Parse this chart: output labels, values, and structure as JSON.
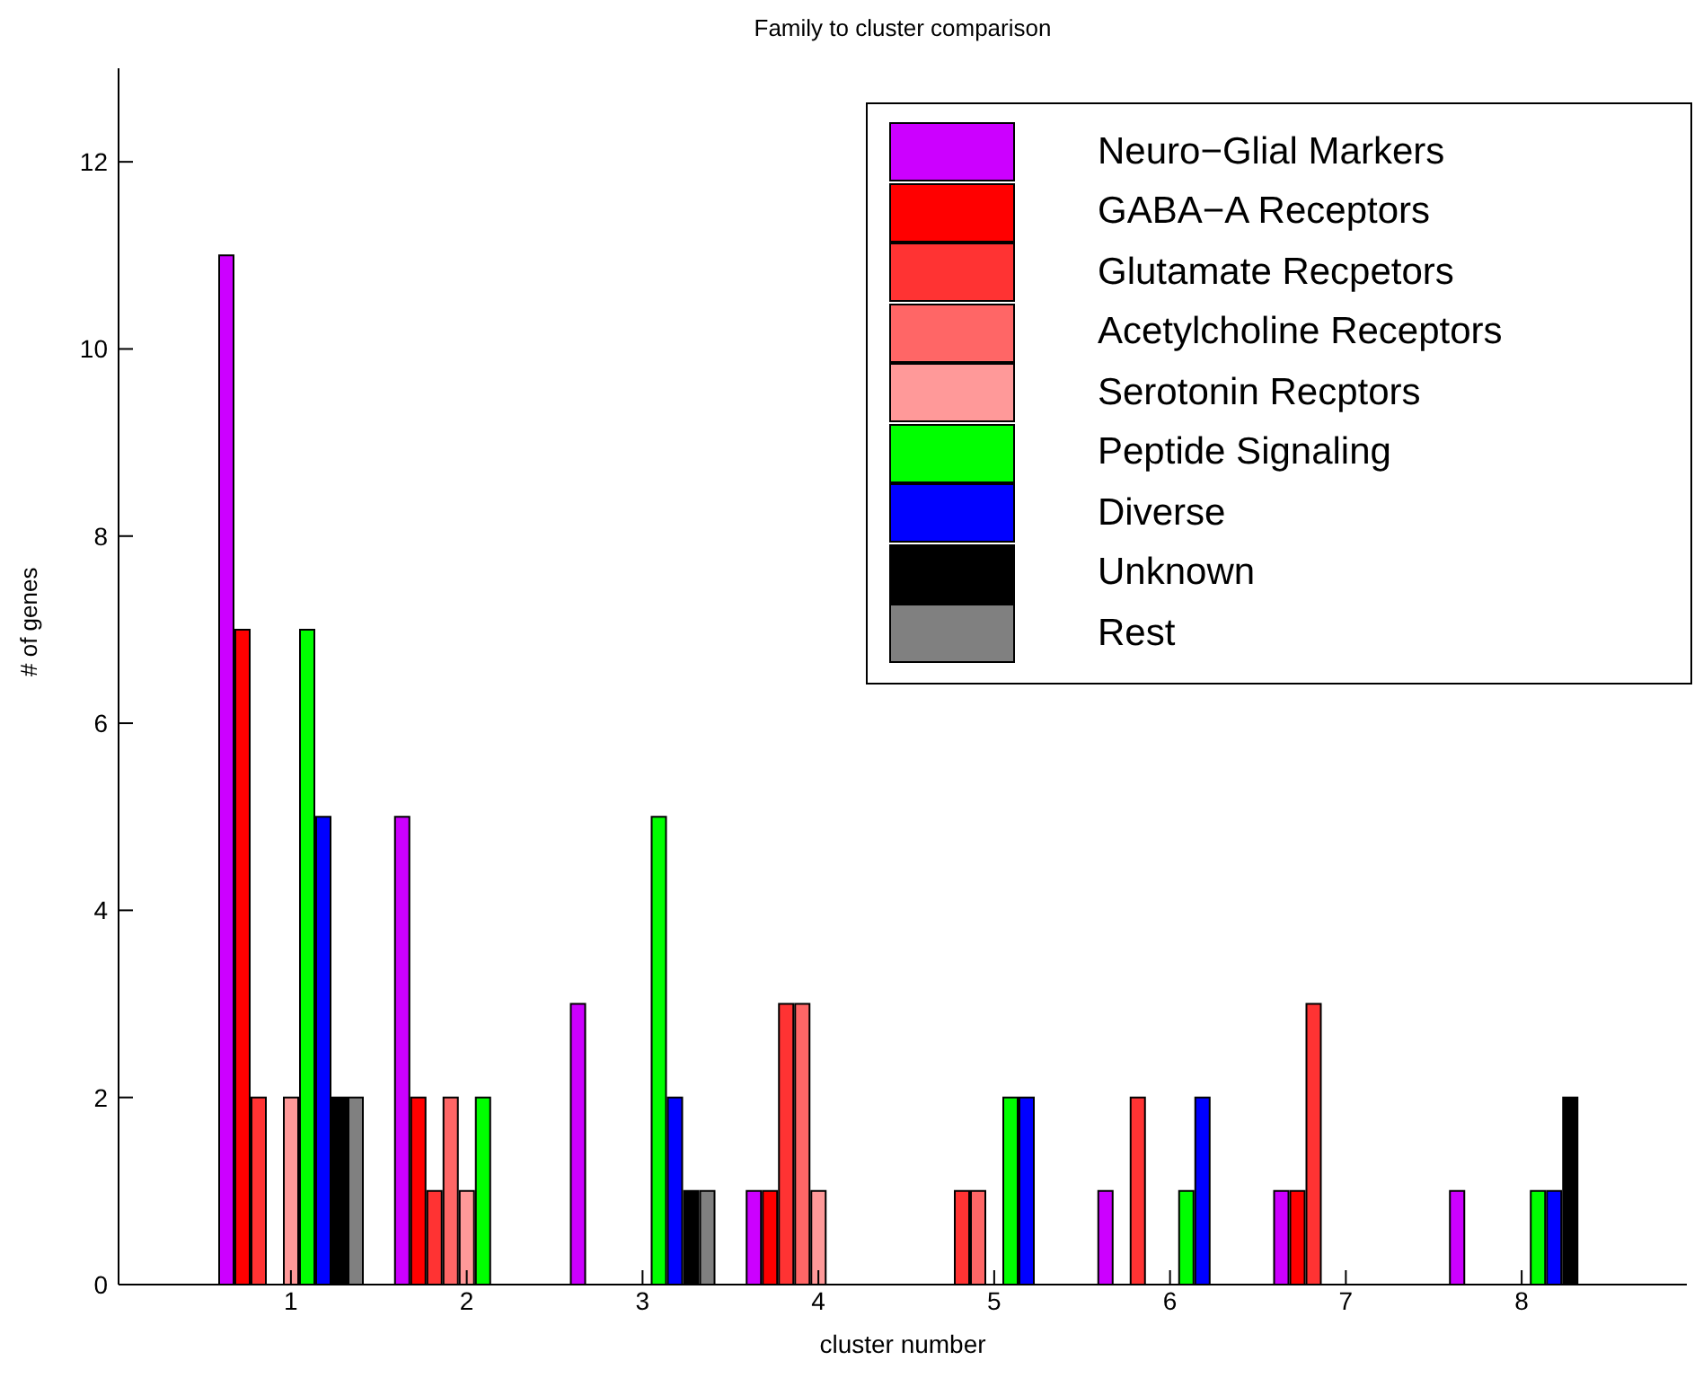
{
  "chart_data": {
    "type": "bar",
    "title": "Family to cluster comparison",
    "xlabel": "cluster number",
    "ylabel": "# of genes",
    "categories": [
      "1",
      "2",
      "3",
      "4",
      "5",
      "6",
      "7",
      "8"
    ],
    "series": [
      {
        "name": "Neuro−Glial Markers",
        "color": "#cc00ff",
        "values": [
          11,
          5,
          3,
          1,
          0,
          1,
          1,
          1
        ]
      },
      {
        "name": "GABA−A Receptors",
        "color": "#ff0000",
        "values": [
          7,
          2,
          0,
          1,
          0,
          0,
          1,
          0
        ]
      },
      {
        "name": "Glutamate Recpetors",
        "color": "#ff3333",
        "values": [
          2,
          1,
          0,
          3,
          1,
          2,
          3,
          0
        ]
      },
      {
        "name": "Acetylcholine Receptors",
        "color": "#ff6666",
        "values": [
          0,
          2,
          0,
          3,
          1,
          0,
          0,
          0
        ]
      },
      {
        "name": "Serotonin Recptors",
        "color": "#ff9999",
        "values": [
          2,
          1,
          0,
          1,
          0,
          0,
          0,
          0
        ]
      },
      {
        "name": "Peptide Signaling",
        "color": "#00ff00",
        "values": [
          7,
          2,
          5,
          0,
          2,
          1,
          0,
          1
        ]
      },
      {
        "name": "Diverse",
        "color": "#0000ff",
        "values": [
          5,
          0,
          2,
          0,
          2,
          2,
          0,
          1
        ]
      },
      {
        "name": "Unknown",
        "color": "#000000",
        "values": [
          2,
          0,
          1,
          0,
          0,
          0,
          0,
          2
        ]
      },
      {
        "name": "Rest",
        "color": "#808080",
        "values": [
          2,
          0,
          1,
          0,
          0,
          0,
          0,
          0
        ]
      }
    ],
    "ylim": [
      0,
      13
    ],
    "yticks": [
      0,
      2,
      4,
      6,
      8,
      10,
      12
    ],
    "grid": false,
    "legend": "top right"
  }
}
